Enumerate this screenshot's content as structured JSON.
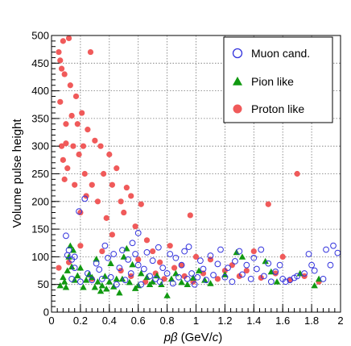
{
  "chart_data": {
    "type": "scatter",
    "xlabel_symbol": "pβ",
    "xlabel_unit_prefix": "(GeV/",
    "xlabel_unit_var": "c",
    "xlabel_unit_suffix": ")",
    "ylabel": "Volume pulse height",
    "xlim": [
      0,
      2
    ],
    "ylim": [
      0,
      500
    ],
    "x_ticks": [
      "0",
      "0.2",
      "0.4",
      "0.6",
      "0.8",
      "1",
      "1.2",
      "1.4",
      "1.6",
      "1.8",
      "2"
    ],
    "y_ticks": [
      "0",
      "50",
      "100",
      "150",
      "200",
      "250",
      "300",
      "350",
      "400",
      "450",
      "500"
    ],
    "grid": true,
    "legend_position": "top-right",
    "colors": {
      "muon": "#3333dd",
      "pion": "#119911",
      "proton": "#f05a5a"
    },
    "series": [
      {
        "name": "Muon cand.",
        "marker": "open-circle",
        "points": [
          [
            0.1,
            138
          ],
          [
            0.11,
            103
          ],
          [
            0.12,
            112
          ],
          [
            0.14,
            95
          ],
          [
            0.16,
            100
          ],
          [
            0.19,
            182
          ],
          [
            0.23,
            205
          ],
          [
            0.14,
            60
          ],
          [
            0.16,
            80
          ],
          [
            0.2,
            55
          ],
          [
            0.25,
            70
          ],
          [
            0.28,
            58
          ],
          [
            0.31,
            88
          ],
          [
            0.33,
            77
          ],
          [
            0.35,
            60
          ],
          [
            0.37,
            120
          ],
          [
            0.39,
            98
          ],
          [
            0.41,
            63
          ],
          [
            0.43,
            105
          ],
          [
            0.45,
            50
          ],
          [
            0.47,
            80
          ],
          [
            0.49,
            112
          ],
          [
            0.51,
            58
          ],
          [
            0.53,
            95
          ],
          [
            0.55,
            70
          ],
          [
            0.56,
            125
          ],
          [
            0.58,
            105
          ],
          [
            0.6,
            143
          ],
          [
            0.6,
            85
          ],
          [
            0.62,
            50
          ],
          [
            0.64,
            78
          ],
          [
            0.66,
            108
          ],
          [
            0.68,
            65
          ],
          [
            0.7,
            93
          ],
          [
            0.72,
            60
          ],
          [
            0.74,
            117
          ],
          [
            0.75,
            55
          ],
          [
            0.77,
            80
          ],
          [
            0.8,
            70
          ],
          [
            0.82,
            105
          ],
          [
            0.84,
            52
          ],
          [
            0.86,
            98
          ],
          [
            0.88,
            63
          ],
          [
            0.9,
            85
          ],
          [
            0.92,
            110
          ],
          [
            0.94,
            60
          ],
          [
            0.95,
            118
          ],
          [
            0.97,
            70
          ],
          [
            0.99,
            50
          ],
          [
            1.01,
            63
          ],
          [
            1.03,
            93
          ],
          [
            1.05,
            78
          ],
          [
            1.07,
            58
          ],
          [
            1.1,
            102
          ],
          [
            1.12,
            67
          ],
          [
            1.15,
            87
          ],
          [
            1.17,
            113
          ],
          [
            1.2,
            63
          ],
          [
            1.22,
            80
          ],
          [
            1.25,
            55
          ],
          [
            1.27,
            92
          ],
          [
            1.3,
            110
          ],
          [
            1.32,
            68
          ],
          [
            1.35,
            85
          ],
          [
            1.38,
            60
          ],
          [
            1.4,
            98
          ],
          [
            1.42,
            78
          ],
          [
            1.45,
            113
          ],
          [
            1.47,
            65
          ],
          [
            1.5,
            88
          ],
          [
            1.52,
            55
          ],
          [
            1.55,
            73
          ],
          [
            1.58,
            85
          ],
          [
            1.6,
            60
          ],
          [
            1.62,
            55
          ],
          [
            1.65,
            58
          ],
          [
            1.68,
            62
          ],
          [
            1.7,
            65
          ],
          [
            1.75,
            70
          ],
          [
            1.78,
            105
          ],
          [
            1.8,
            85
          ],
          [
            1.82,
            75
          ],
          [
            1.88,
            60
          ],
          [
            1.9,
            113
          ],
          [
            1.93,
            85
          ],
          [
            1.95,
            120
          ],
          [
            1.98,
            107
          ]
        ]
      },
      {
        "name": "Pion like",
        "marker": "filled-triangle",
        "points": [
          [
            0.06,
            48
          ],
          [
            0.08,
            63
          ],
          [
            0.09,
            55
          ],
          [
            0.1,
            45
          ],
          [
            0.11,
            75
          ],
          [
            0.12,
            100
          ],
          [
            0.13,
            120
          ],
          [
            0.14,
            82
          ],
          [
            0.15,
            112
          ],
          [
            0.16,
            58
          ],
          [
            0.18,
            66
          ],
          [
            0.2,
            80
          ],
          [
            0.22,
            45
          ],
          [
            0.24,
            58
          ],
          [
            0.26,
            68
          ],
          [
            0.28,
            63
          ],
          [
            0.3,
            45
          ],
          [
            0.31,
            96
          ],
          [
            0.32,
            55
          ],
          [
            0.34,
            38
          ],
          [
            0.35,
            48
          ],
          [
            0.37,
            65
          ],
          [
            0.38,
            42
          ],
          [
            0.4,
            55
          ],
          [
            0.41,
            88
          ],
          [
            0.43,
            46
          ],
          [
            0.45,
            60
          ],
          [
            0.47,
            35
          ],
          [
            0.49,
            60
          ],
          [
            0.5,
            100
          ],
          [
            0.52,
            115
          ],
          [
            0.54,
            54
          ],
          [
            0.56,
            86
          ],
          [
            0.58,
            43
          ],
          [
            0.6,
            48
          ],
          [
            0.62,
            70
          ],
          [
            0.66,
            63
          ],
          [
            0.68,
            50
          ],
          [
            0.7,
            55
          ],
          [
            0.73,
            66
          ],
          [
            0.76,
            50
          ],
          [
            0.8,
            30
          ],
          [
            0.83,
            60
          ],
          [
            0.86,
            70
          ],
          [
            0.9,
            54
          ],
          [
            0.94,
            50
          ],
          [
            0.98,
            62
          ],
          [
            1.02,
            75
          ],
          [
            1.06,
            58
          ],
          [
            1.1,
            52
          ],
          [
            1.2,
            68
          ],
          [
            1.28,
            108
          ],
          [
            1.32,
            100
          ],
          [
            1.48,
            92
          ],
          [
            1.52,
            73
          ],
          [
            1.56,
            55
          ],
          [
            1.72,
            70
          ],
          [
            1.82,
            48
          ],
          [
            1.85,
            60
          ]
        ]
      },
      {
        "name": "Proton like",
        "marker": "filled-circle",
        "points": [
          [
            0.05,
            470
          ],
          [
            0.06,
            455
          ],
          [
            0.07,
            440
          ],
          [
            0.06,
            380
          ],
          [
            0.08,
            490
          ],
          [
            0.09,
            430
          ],
          [
            0.1,
            340
          ],
          [
            0.07,
            300
          ],
          [
            0.08,
            275
          ],
          [
            0.09,
            240
          ],
          [
            0.1,
            305
          ],
          [
            0.11,
            260
          ],
          [
            0.12,
            495
          ],
          [
            0.13,
            410
          ],
          [
            0.14,
            355
          ],
          [
            0.15,
            300
          ],
          [
            0.16,
            230
          ],
          [
            0.17,
            390
          ],
          [
            0.18,
            340
          ],
          [
            0.19,
            285
          ],
          [
            0.2,
            180
          ],
          [
            0.21,
            360
          ],
          [
            0.22,
            300
          ],
          [
            0.23,
            250
          ],
          [
            0.24,
            210
          ],
          [
            0.25,
            330
          ],
          [
            0.27,
            470
          ],
          [
            0.28,
            230
          ],
          [
            0.3,
            310
          ],
          [
            0.32,
            200
          ],
          [
            0.34,
            300
          ],
          [
            0.36,
            250
          ],
          [
            0.38,
            170
          ],
          [
            0.4,
            285
          ],
          [
            0.42,
            230
          ],
          [
            0.45,
            260
          ],
          [
            0.48,
            200
          ],
          [
            0.5,
            180
          ],
          [
            0.52,
            225
          ],
          [
            0.55,
            210
          ],
          [
            0.58,
            155
          ],
          [
            0.62,
            195
          ],
          [
            0.66,
            130
          ],
          [
            0.7,
            110
          ],
          [
            0.75,
            90
          ],
          [
            0.82,
            120
          ],
          [
            0.9,
            85
          ],
          [
            0.96,
            175
          ],
          [
            1.0,
            100
          ],
          [
            1.1,
            95
          ],
          [
            1.2,
            75
          ],
          [
            1.3,
            65
          ],
          [
            1.4,
            110
          ],
          [
            1.5,
            195
          ],
          [
            1.6,
            100
          ],
          [
            1.7,
            250
          ],
          [
            1.85,
            55
          ],
          [
            0.05,
            80
          ],
          [
            0.12,
            90
          ],
          [
            0.2,
            120
          ],
          [
            0.28,
            60
          ],
          [
            0.35,
            110
          ],
          [
            0.42,
            140
          ],
          [
            0.48,
            75
          ],
          [
            0.55,
            65
          ],
          [
            0.6,
            95
          ],
          [
            0.65,
            55
          ],
          [
            0.72,
            70
          ],
          [
            0.78,
            60
          ],
          [
            0.85,
            80
          ],
          [
            0.92,
            65
          ],
          [
            0.98,
            55
          ],
          [
            1.05,
            70
          ],
          [
            1.15,
            60
          ],
          [
            1.25,
            85
          ],
          [
            1.35,
            75
          ],
          [
            1.45,
            62
          ],
          [
            1.55,
            70
          ],
          [
            1.65,
            58
          ],
          [
            1.75,
            65
          ]
        ]
      }
    ]
  }
}
